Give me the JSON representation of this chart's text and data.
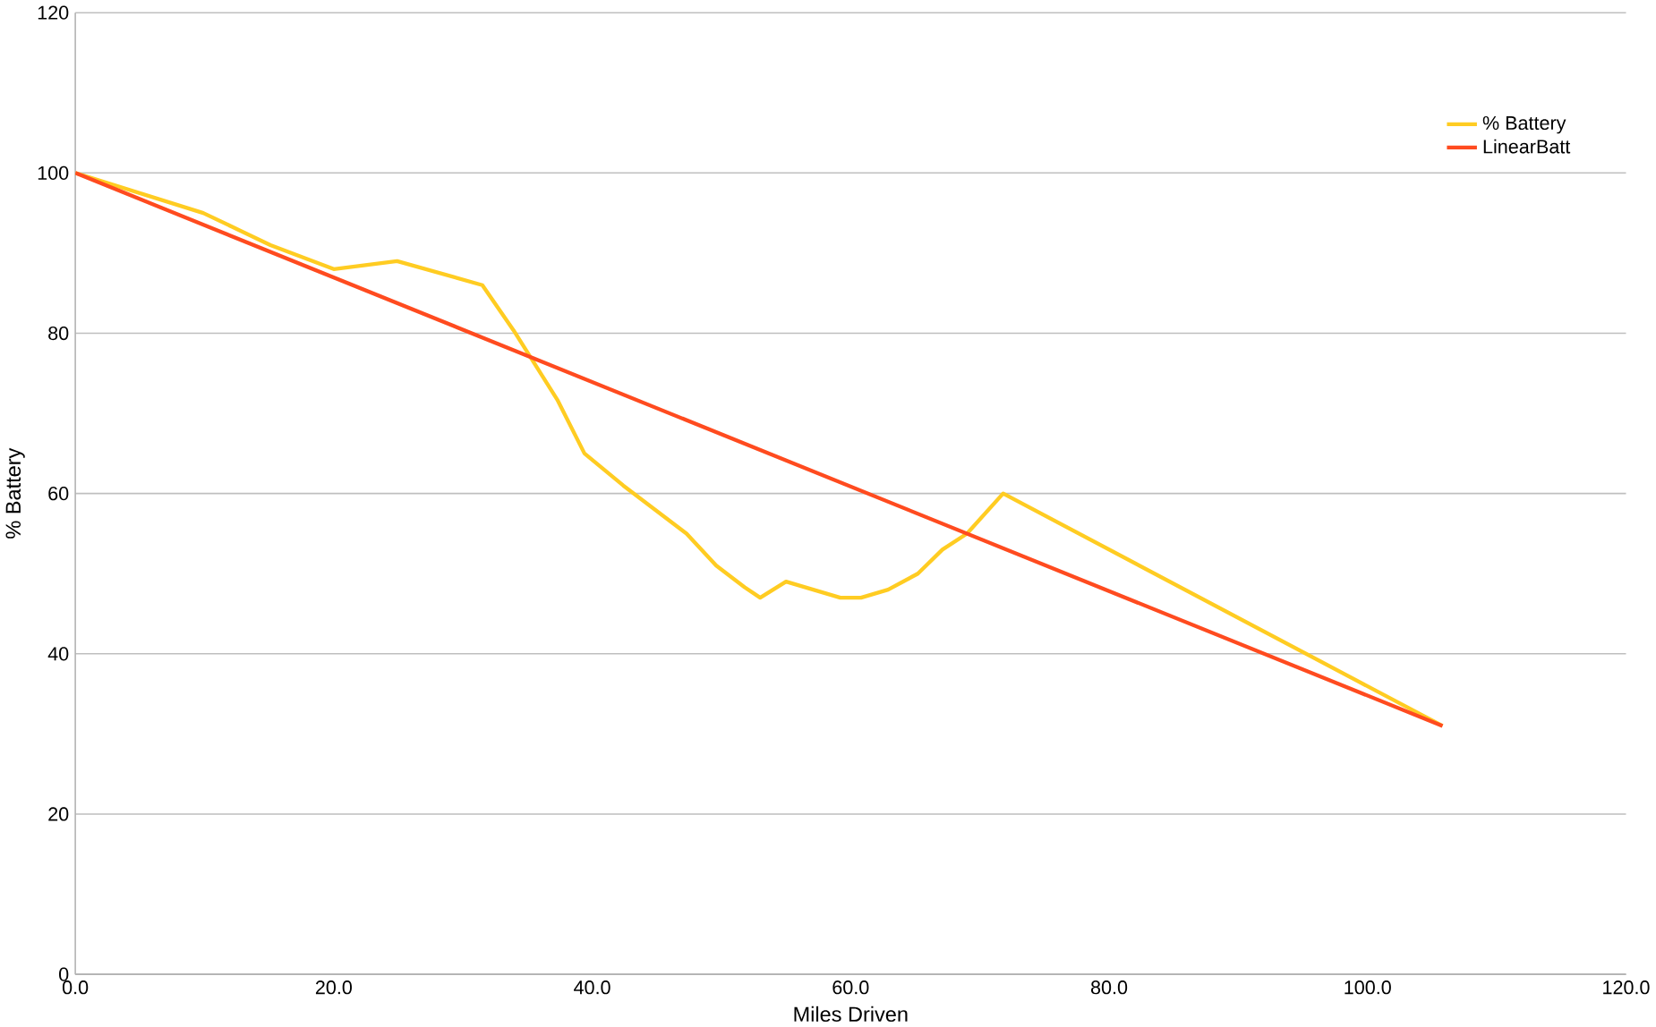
{
  "chart_data": {
    "type": "line",
    "xlabel": "Miles Driven",
    "ylabel": "% Battery",
    "xlim": [
      0,
      120
    ],
    "ylim": [
      0,
      120
    ],
    "xticks": [
      {
        "value": 0,
        "label": "0.0"
      },
      {
        "value": 20,
        "label": "20.0"
      },
      {
        "value": 40,
        "label": "40.0"
      },
      {
        "value": 60,
        "label": "60.0"
      },
      {
        "value": 80,
        "label": "80.0"
      },
      {
        "value": 100,
        "label": "100.0"
      },
      {
        "value": 120,
        "label": "120.0"
      }
    ],
    "yticks": [
      0,
      20,
      40,
      60,
      80,
      100,
      120
    ],
    "grid": "y",
    "legend": "top right",
    "marker": "none",
    "line_style": "solid",
    "series": [
      {
        "name": "% Battery",
        "color": "#ffcc22",
        "x": [
          0,
          9.9,
          15.1,
          20,
          24.9,
          31.5,
          33.9,
          37.3,
          39.4,
          42.4,
          47.3,
          49.6,
          51.8,
          53,
          55,
          59.2,
          60.8,
          62.9,
          65.2,
          67.1,
          69,
          71.8,
          105.8
        ],
        "values": [
          100,
          95,
          91,
          88,
          89,
          86,
          80.4,
          71.7,
          65,
          61,
          55,
          51,
          48.3,
          47,
          49,
          47,
          47,
          48,
          50,
          53,
          55,
          60,
          31
        ]
      },
      {
        "name": "LinearBatt",
        "color": "#ff4b1f",
        "x": [
          0,
          105.8
        ],
        "values": [
          100,
          31
        ]
      }
    ]
  }
}
